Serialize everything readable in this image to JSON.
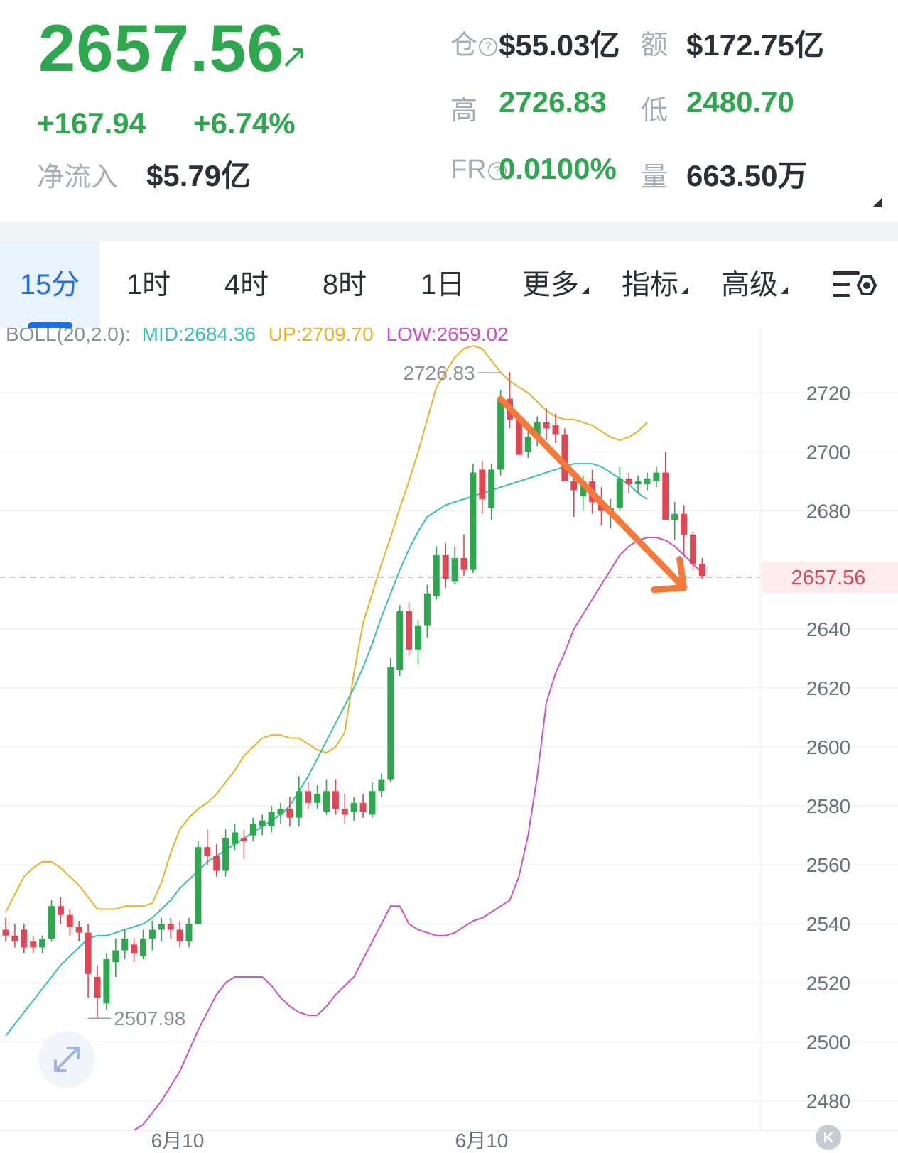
{
  "ticker": {
    "price": "2657.56",
    "arrow": "↗",
    "change": "+167.94",
    "change_pct": "+6.74%",
    "net_inflow_label": "净流入",
    "net_inflow": "$5.79亿",
    "open_interest_label": "仓",
    "open_interest": "$55.03亿",
    "amount_label": "额",
    "amount": "$172.75亿",
    "high_label": "高",
    "high": "2726.83",
    "low_label": "低",
    "low": "2480.70",
    "fr_label": "FR",
    "fr": "0.0100%",
    "volume_label": "量",
    "volume": "663.50万",
    "help_icon": "?",
    "colors": {
      "up": "#2ea84f",
      "down": "#e04654",
      "accent": "#1f6fe0"
    }
  },
  "tabs": [
    {
      "label": "15分",
      "active": true
    },
    {
      "label": "1时"
    },
    {
      "label": "4时"
    },
    {
      "label": "8时"
    },
    {
      "label": "1日"
    },
    {
      "label": "更多",
      "dropdown": true
    },
    {
      "label": "指标",
      "dropdown": true
    },
    {
      "label": "高级",
      "dropdown": true
    }
  ],
  "settings_icon": "chart-settings-icon",
  "indicator": {
    "name": "BOLL(20,2.0):",
    "mid": "MID:2684.36",
    "up": "UP:2709.70",
    "low": "LOW:2659.02",
    "mid_color": "#35c2b0",
    "up_color": "#e8b423",
    "low_color": "#d14fc9"
  },
  "chart_data": {
    "type": "candlestick",
    "interval": "15分",
    "ylim": [
      2470,
      2742
    ],
    "y_ticks": [
      2720,
      2700,
      2680,
      2640,
      2620,
      2600,
      2580,
      2560,
      2540,
      2520,
      2500,
      2480
    ],
    "x_tick_labels": [
      "6月10",
      "6月10"
    ],
    "last_price": 2657.56,
    "last_price_label": "2657.56",
    "annotations": [
      {
        "text": "2726.83",
        "value": 2726.83,
        "kind": "high",
        "candle_index": 54
      },
      {
        "text": "2507.98",
        "value": 2507.98,
        "kind": "low",
        "candle_index": 9
      }
    ],
    "trend_arrow": {
      "from": [
        54,
        2718
      ],
      "to": [
        74,
        2654
      ],
      "color": "#f47a3c"
    },
    "candles": [
      [
        2538,
        2542,
        2534,
        2536
      ],
      [
        2536,
        2540,
        2532,
        2534
      ],
      [
        2538,
        2540,
        2530,
        2532
      ],
      [
        2534,
        2536,
        2530,
        2532
      ],
      [
        2532,
        2536,
        2530,
        2535
      ],
      [
        2535,
        2548,
        2534,
        2546
      ],
      [
        2546,
        2549,
        2540,
        2543
      ],
      [
        2543,
        2545,
        2536,
        2539
      ],
      [
        2539,
        2541,
        2534,
        2537
      ],
      [
        2537,
        2540,
        2515,
        2523
      ],
      [
        2522,
        2526,
        2508,
        2515
      ],
      [
        2513,
        2530,
        2511,
        2528
      ],
      [
        2527,
        2535,
        2522,
        2531
      ],
      [
        2531,
        2538,
        2528,
        2535
      ],
      [
        2533,
        2535,
        2527,
        2530
      ],
      [
        2529,
        2538,
        2528,
        2535
      ],
      [
        2535,
        2541,
        2531,
        2538
      ],
      [
        2538,
        2542,
        2534,
        2540
      ],
      [
        2540,
        2542,
        2535,
        2538
      ],
      [
        2538,
        2541,
        2532,
        2534
      ],
      [
        2534,
        2542,
        2532,
        2540
      ],
      [
        2540,
        2568,
        2540,
        2566
      ],
      [
        2566,
        2572,
        2560,
        2563
      ],
      [
        2563,
        2567,
        2556,
        2558
      ],
      [
        2558,
        2572,
        2556,
        2569
      ],
      [
        2567,
        2574,
        2565,
        2571
      ],
      [
        2569,
        2572,
        2562,
        2568
      ],
      [
        2570,
        2576,
        2568,
        2574
      ],
      [
        2573,
        2577,
        2570,
        2575
      ],
      [
        2573,
        2580,
        2571,
        2578
      ],
      [
        2577,
        2581,
        2574,
        2579
      ],
      [
        2579,
        2583,
        2573,
        2576
      ],
      [
        2576,
        2590,
        2573,
        2585
      ],
      [
        2585,
        2588,
        2579,
        2581
      ],
      [
        2581,
        2587,
        2579,
        2584
      ],
      [
        2578,
        2589,
        2577,
        2585
      ],
      [
        2585,
        2589,
        2577,
        2579
      ],
      [
        2579,
        2584,
        2574,
        2577
      ],
      [
        2578,
        2583,
        2575,
        2581
      ],
      [
        2581,
        2584,
        2576,
        2578
      ],
      [
        2577,
        2588,
        2576,
        2585
      ],
      [
        2585,
        2591,
        2583,
        2589
      ],
      [
        2589,
        2630,
        2588,
        2627
      ],
      [
        2626,
        2648,
        2624,
        2646
      ],
      [
        2646,
        2649,
        2631,
        2633
      ],
      [
        2633,
        2643,
        2628,
        2641
      ],
      [
        2641,
        2655,
        2637,
        2652
      ],
      [
        2651,
        2668,
        2650,
        2665
      ],
      [
        2665,
        2669,
        2654,
        2657
      ],
      [
        2656,
        2668,
        2655,
        2664
      ],
      [
        2664,
        2672,
        2658,
        2660
      ],
      [
        2660,
        2696,
        2659,
        2693
      ],
      [
        2694,
        2697,
        2679,
        2684
      ],
      [
        2681,
        2696,
        2677,
        2694
      ],
      [
        2694,
        2721,
        2692,
        2718
      ],
      [
        2718,
        2727,
        2708,
        2711
      ],
      [
        2711,
        2713,
        2699,
        2699
      ],
      [
        2700,
        2708,
        2698,
        2705
      ],
      [
        2705,
        2712,
        2702,
        2710
      ],
      [
        2710,
        2715,
        2704,
        2708
      ],
      [
        2709,
        2713,
        2703,
        2706
      ],
      [
        2706,
        2708,
        2690,
        2690
      ],
      [
        2690,
        2693,
        2678,
        2687
      ],
      [
        2685,
        2692,
        2680,
        2690
      ],
      [
        2690,
        2694,
        2679,
        2683
      ],
      [
        2683,
        2688,
        2675,
        2680
      ],
      [
        2679,
        2684,
        2674,
        2681
      ],
      [
        2681,
        2695,
        2680,
        2691
      ],
      [
        2691,
        2693,
        2686,
        2689
      ],
      [
        2689,
        2692,
        2686,
        2690
      ],
      [
        2689,
        2693,
        2687,
        2691
      ],
      [
        2690,
        2695,
        2688,
        2693
      ],
      [
        2693,
        2700,
        2677,
        2677
      ],
      [
        2677,
        2683,
        2670,
        2679
      ],
      [
        2679,
        2682,
        2665,
        2672
      ],
      [
        2672,
        2673,
        2660,
        2662
      ],
      [
        2662,
        2664,
        2657,
        2658
      ]
    ],
    "series": [
      {
        "name": "UP",
        "color": "#e8b423",
        "values": [
          2544,
          2550,
          2556,
          2559,
          2561,
          2561,
          2559,
          2556,
          2553,
          2549,
          2545,
          2545,
          2545,
          2546,
          2546,
          2546,
          2547,
          2554,
          2564,
          2572,
          2576,
          2579,
          2581,
          2584,
          2588,
          2592,
          2597,
          2600,
          2603,
          2604,
          2604,
          2603,
          2603,
          2601,
          2599,
          2598,
          2600,
          2605,
          2625,
          2642,
          2652,
          2662,
          2671,
          2681,
          2690,
          2700,
          2711,
          2722,
          2727,
          2732,
          2735,
          2736,
          2735,
          2731,
          2727,
          2724,
          2722,
          2720,
          2717,
          2714,
          2712,
          2711,
          2711,
          2710,
          2709,
          2707,
          2705,
          2704,
          2705,
          2707,
          2710
        ],
        "start": 0
      },
      {
        "name": "MID",
        "color": "#35c2b0",
        "values": [
          2502,
          2506,
          2510,
          2514,
          2518,
          2522,
          2526,
          2529,
          2532,
          2535,
          2536,
          2536,
          2537,
          2538,
          2539,
          2540,
          2542,
          2545,
          2548,
          2552,
          2555,
          2558,
          2561,
          2563,
          2565,
          2567,
          2569,
          2571,
          2573,
          2575,
          2577,
          2580,
          2585,
          2590,
          2596,
          2602,
          2608,
          2614,
          2620,
          2627,
          2635,
          2644,
          2652,
          2660,
          2667,
          2673,
          2678,
          2680,
          2682,
          2683,
          2684,
          2685,
          2686,
          2687,
          2688,
          2689,
          2690,
          2691,
          2692,
          2693,
          2694,
          2695,
          2696,
          2696,
          2696,
          2695,
          2693,
          2691,
          2689,
          2686,
          2684
        ],
        "start": 0
      },
      {
        "name": "LOW",
        "color": "#d14fc9",
        "values": [
          2470,
          2472,
          2476,
          2480,
          2485,
          2490,
          2497,
          2504,
          2510,
          2516,
          2520,
          2522,
          2522,
          2522,
          2522,
          2519,
          2515,
          2512,
          2510,
          2509,
          2509,
          2512,
          2516,
          2519,
          2522,
          2528,
          2534,
          2540,
          2546,
          2546,
          2540,
          2538,
          2537,
          2536,
          2536,
          2537,
          2539,
          2541,
          2542,
          2544,
          2546,
          2548,
          2556,
          2570,
          2590,
          2615,
          2625,
          2632,
          2640,
          2645,
          2650,
          2655,
          2660,
          2665,
          2668,
          2670,
          2671,
          2671,
          2670,
          2668,
          2665,
          2662,
          2659
        ],
        "start": 14
      }
    ]
  }
}
